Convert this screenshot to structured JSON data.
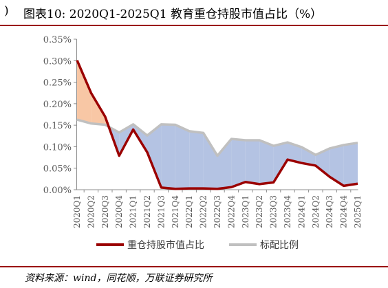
{
  "header": {
    "mark": ")",
    "title": "图表10: 2020Q1-2025Q1 教育重仓持股市值占比（%）"
  },
  "footer": {
    "source": "资料来源：wind，同花顺，万联证券研究所"
  },
  "colors": {
    "title_rule": "#9b0000",
    "holding_line": "#9b0000",
    "benchmark_line": "#c0c0c0",
    "overweight_fill": "#f8c7a5",
    "underweight_fill": "#b4c3e3"
  },
  "chart_data": {
    "type": "line",
    "title": "",
    "xlabel": "",
    "ylabel": "",
    "ylim": [
      0,
      0.35
    ],
    "yticks": [
      "0.00%",
      "0.05%",
      "0.10%",
      "0.15%",
      "0.20%",
      "0.25%",
      "0.30%",
      "0.35%"
    ],
    "ytick_values": [
      0,
      0.05,
      0.1,
      0.15,
      0.2,
      0.25,
      0.3,
      0.35
    ],
    "grid": false,
    "legend_position": "bottom",
    "categories": [
      "2020Q1",
      "2020Q2",
      "2020Q3",
      "2020Q4",
      "2021Q1",
      "2021Q2",
      "2021Q3",
      "2021Q4",
      "2022Q1",
      "2022Q2",
      "2022Q3",
      "2022Q4",
      "2023Q1",
      "2023Q2",
      "2023Q3",
      "2023Q4",
      "2024Q1",
      "2024Q2",
      "2024Q3",
      "2024Q4",
      "2025Q1"
    ],
    "series": [
      {
        "name": "重仓持股市值占比",
        "color": "#9b0000",
        "values": [
          0.301,
          0.225,
          0.17,
          0.079,
          0.14,
          0.087,
          0.005,
          0.002,
          0.003,
          0.003,
          0.002,
          0.006,
          0.018,
          0.013,
          0.017,
          0.07,
          0.062,
          0.056,
          0.03,
          0.009,
          0.014
        ]
      },
      {
        "name": "标配比例",
        "color": "#c0c0c0",
        "values": [
          0.163,
          0.154,
          0.151,
          0.133,
          0.152,
          0.126,
          0.152,
          0.151,
          0.136,
          0.132,
          0.079,
          0.118,
          0.115,
          0.115,
          0.102,
          0.11,
          0.099,
          0.081,
          0.096,
          0.104,
          0.109
        ]
      }
    ]
  }
}
